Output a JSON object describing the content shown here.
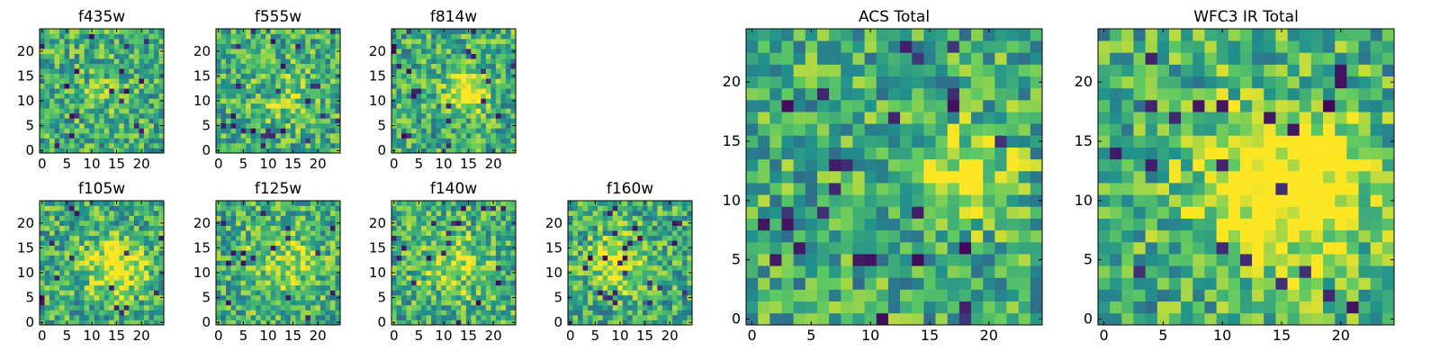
{
  "figure": {
    "layout": "7 small per-filter cutouts (2 rows) plus 2 large total stacks",
    "colormap": "viridis",
    "colormap_colors": [
      "#440154",
      "#3b528b",
      "#21918c",
      "#5ec962",
      "#fde725"
    ]
  },
  "chart_data": [
    {
      "type": "heatmap",
      "title": "f435w",
      "shape": [
        25,
        25
      ],
      "xticks": [
        0,
        5,
        10,
        15,
        20
      ],
      "yticks": [
        0,
        5,
        10,
        15,
        20
      ],
      "xlim": [
        -0.5,
        24.5
      ],
      "ylim": [
        -0.5,
        24.5
      ],
      "z_pattern": "noisy, faint source"
    },
    {
      "type": "heatmap",
      "title": "f555w",
      "shape": [
        25,
        25
      ],
      "xticks": [
        0,
        5,
        10,
        15,
        20
      ],
      "yticks": [
        0,
        5,
        10,
        15,
        20
      ],
      "xlim": [
        -0.5,
        24.5
      ],
      "ylim": [
        -0.5,
        24.5
      ],
      "z_pattern": "noisy, faint source"
    },
    {
      "type": "heatmap",
      "title": "f814w",
      "shape": [
        25,
        25
      ],
      "xticks": [
        0,
        5,
        10,
        15,
        20
      ],
      "yticks": [
        0,
        5,
        10,
        15,
        20
      ],
      "xlim": [
        -0.5,
        24.5
      ],
      "ylim": [
        -0.5,
        24.5
      ],
      "z_pattern": "source near (15, 12)"
    },
    {
      "type": "heatmap",
      "title": "f105w",
      "shape": [
        25,
        25
      ],
      "xticks": [
        0,
        5,
        10,
        15,
        20
      ],
      "yticks": [
        0,
        5,
        10,
        15,
        20
      ],
      "xlim": [
        -0.5,
        24.5
      ],
      "ylim": [
        -0.5,
        24.5
      ],
      "z_pattern": "source near (15, 11)"
    },
    {
      "type": "heatmap",
      "title": "f125w",
      "shape": [
        25,
        25
      ],
      "xticks": [
        0,
        5,
        10,
        15,
        20
      ],
      "yticks": [
        0,
        5,
        10,
        15,
        20
      ],
      "xlim": [
        -0.5,
        24.5
      ],
      "ylim": [
        -0.5,
        24.5
      ],
      "z_pattern": "diffuse"
    },
    {
      "type": "heatmap",
      "title": "f140w",
      "shape": [
        25,
        25
      ],
      "xticks": [
        0,
        5,
        10,
        15,
        20
      ],
      "yticks": [
        0,
        5,
        10,
        15,
        20
      ],
      "xlim": [
        -0.5,
        24.5
      ],
      "ylim": [
        -0.5,
        24.5
      ],
      "z_pattern": "diffuse"
    },
    {
      "type": "heatmap",
      "title": "f160w",
      "shape": [
        25,
        25
      ],
      "xticks": [
        0,
        5,
        10,
        15,
        20
      ],
      "yticks": [
        0,
        5,
        10,
        15,
        20
      ],
      "xlim": [
        -0.5,
        24.5
      ],
      "ylim": [
        -0.5,
        24.5
      ],
      "z_pattern": "source near (10, 12)"
    },
    {
      "type": "heatmap",
      "title": "ACS Total",
      "shape": [
        25,
        25
      ],
      "xticks": [
        0,
        5,
        10,
        15,
        20
      ],
      "yticks": [
        0,
        5,
        10,
        15,
        20
      ],
      "xlim": [
        -0.5,
        24.5
      ],
      "ylim": [
        -0.5,
        24.5
      ],
      "z_pattern": "source near (18, 12)"
    },
    {
      "type": "heatmap",
      "title": "WFC3 IR Total",
      "shape": [
        25,
        25
      ],
      "xticks": [
        0,
        5,
        10,
        15,
        20
      ],
      "yticks": [
        0,
        5,
        10,
        15,
        20
      ],
      "xlim": [
        -0.5,
        24.5
      ],
      "ylim": [
        -0.5,
        24.5
      ],
      "z_pattern": "extended source near (15, 11)"
    }
  ]
}
